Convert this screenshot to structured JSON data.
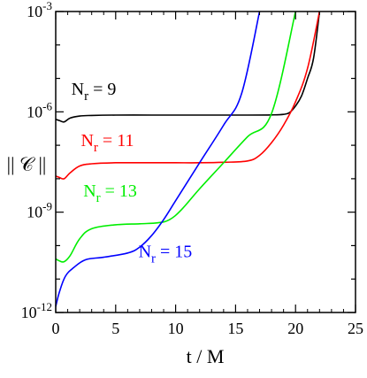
{
  "chart_data": {
    "type": "line",
    "xlabel": "t / M",
    "ylabel": "|| 𝒞 ||",
    "xlim": [
      0,
      25
    ],
    "ylim_log10": [
      -12,
      -3
    ],
    "y_scale": "log",
    "x_ticks": [
      0,
      5,
      10,
      15,
      20,
      25
    ],
    "y_ticks": [
      {
        "value": 0.001,
        "base": "10",
        "exp": "-3"
      },
      {
        "value": 1e-06,
        "base": "10",
        "exp": "-6"
      },
      {
        "value": 1e-09,
        "base": "10",
        "exp": "-9"
      },
      {
        "value": 1e-12,
        "base": "10",
        "exp": "-12"
      }
    ],
    "grid": false,
    "legend": "inline labels",
    "series": [
      {
        "label_main": "N",
        "label_sub": "r",
        "label_rest": " = 9",
        "color": "#000000",
        "x": [
          0,
          0.3,
          0.7,
          1.2,
          2,
          3,
          5,
          8,
          10,
          12,
          14,
          16,
          18,
          19,
          19.5,
          20,
          20.5,
          21,
          21.5,
          22
        ],
        "y": [
          6e-07,
          5.5e-07,
          5e-07,
          6.5e-07,
          7.5e-07,
          7.8e-07,
          8e-07,
          8e-07,
          8e-07,
          8e-07,
          8e-07,
          8e-07,
          8.1e-07,
          8.4e-07,
          9.5e-07,
          1.5e-06,
          3e-06,
          1e-05,
          4e-05,
          0.001
        ]
      },
      {
        "label_main": "N",
        "label_sub": "r",
        "label_rest": " = 11",
        "color": "#ff0000",
        "x": [
          0,
          0.3,
          0.7,
          1.2,
          2,
          3,
          5,
          8,
          10,
          12,
          14,
          16,
          17,
          18,
          19,
          20,
          21,
          22
        ],
        "y": [
          1.2e-08,
          1.1e-08,
          1e-08,
          1.5e-08,
          2.4e-08,
          2.8e-08,
          3e-08,
          3e-08,
          3e-08,
          3e-08,
          3.1e-08,
          3.4e-08,
          5e-08,
          1.2e-07,
          4e-07,
          2e-06,
          2e-05,
          0.001
        ]
      },
      {
        "label_main": "N",
        "label_sub": "r",
        "label_rest": " = 13",
        "color": "#00ee00",
        "x": [
          0,
          0.3,
          0.7,
          1.2,
          2,
          3,
          5,
          7,
          8.5,
          9.5,
          10.5,
          12,
          14,
          16,
          18,
          20
        ],
        "y": [
          4e-11,
          3.5e-11,
          3.3e-11,
          5e-11,
          1.6e-10,
          3.2e-10,
          4.2e-10,
          4.5e-10,
          4.8e-10,
          6e-10,
          1.2e-09,
          5e-09,
          3e-08,
          1.8e-07,
          9e-07,
          0.001
        ]
      },
      {
        "label_main": "N",
        "label_sub": "r",
        "label_rest": " = 15",
        "color": "#0000ff",
        "x": [
          0,
          0.3,
          0.8,
          1.5,
          2.5,
          4,
          6,
          7,
          8,
          9,
          10,
          12,
          14,
          15.5,
          17
        ],
        "y": [
          1.5e-12,
          4e-12,
          1.2e-11,
          2.2e-11,
          3.8e-11,
          4.5e-11,
          6e-11,
          9e-11,
          2e-10,
          6e-10,
          2.2e-09,
          3e-08,
          4e-07,
          3.5e-06,
          0.001
        ]
      }
    ],
    "labels_at": [
      {
        "x": 1.3,
        "y": 3.2e-06
      },
      {
        "x": 2.1,
        "y": 9.5e-08
      },
      {
        "x": 2.3,
        "y": 2.9e-09
      },
      {
        "x": 6.9,
        "y": 4.5e-11
      }
    ]
  }
}
